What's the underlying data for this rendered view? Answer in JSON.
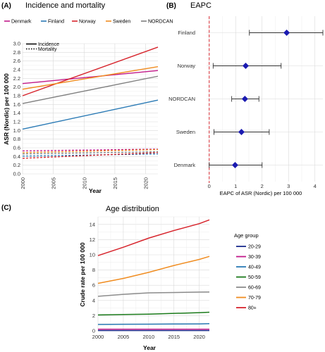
{
  "chart_data": [
    {
      "type": "line",
      "panel": "(A)",
      "title": "Incidence and mortality",
      "xlabel": "Year",
      "ylabel": "ASR (Nordic) per 100 000",
      "xlim": [
        2000,
        2022
      ],
      "ylim": [
        0,
        3.0
      ],
      "xticks": [
        2000,
        2005,
        2010,
        2015,
        2020
      ],
      "yticks": [
        0,
        0.2,
        0.4,
        0.6,
        0.8,
        1.0,
        1.2,
        1.4,
        1.6,
        1.8,
        2.0,
        2.2,
        2.4,
        2.6,
        2.8,
        3.0
      ],
      "legend": [
        "Denmark",
        "Finland",
        "Norway",
        "Sweden",
        "NORDCAN"
      ],
      "linetype_legend": [
        "Incidence",
        "Mortality"
      ],
      "colors": {
        "Denmark": "#c21a8a",
        "Finland": "#2a7ab5",
        "Norway": "#d7242c",
        "Sweden": "#f08c20",
        "NORDCAN": "#7f7f7f"
      },
      "x": [
        2000,
        2022
      ],
      "incidence": [
        {
          "name": "Denmark",
          "values": [
            2.08,
            2.38
          ]
        },
        {
          "name": "Finland",
          "values": [
            1.03,
            1.7
          ]
        },
        {
          "name": "Norway",
          "values": [
            1.8,
            2.92
          ]
        },
        {
          "name": "Sweden",
          "values": [
            1.95,
            2.47
          ]
        },
        {
          "name": "NORDCAN",
          "values": [
            1.62,
            2.25
          ]
        }
      ],
      "mortality": [
        {
          "name": "Denmark",
          "values": [
            0.53,
            0.57
          ]
        },
        {
          "name": "Finland",
          "values": [
            0.41,
            0.46
          ]
        },
        {
          "name": "Norway",
          "values": [
            0.36,
            0.49
          ]
        },
        {
          "name": "Sweden",
          "values": [
            0.49,
            0.56
          ]
        },
        {
          "name": "NORDCAN",
          "values": [
            0.46,
            0.51
          ]
        }
      ]
    },
    {
      "type": "forest",
      "panel": "(B)",
      "title": "EAPC",
      "xlabel": "EAPC of ASR (Nordic) per 100 000",
      "xlim": [
        -0.1,
        4.3
      ],
      "xticks": [
        0,
        1,
        2,
        3,
        4
      ],
      "reference_line": 0,
      "categories": [
        "Finland",
        "Norway",
        "NORDCAN",
        "Sweden",
        "Denmark"
      ],
      "estimate": [
        2.93,
        1.38,
        1.35,
        1.22,
        0.98
      ],
      "lower": [
        1.52,
        0.15,
        0.85,
        0.18,
        0.0
      ],
      "upper": [
        4.3,
        2.72,
        1.88,
        2.27,
        2.0
      ],
      "marker_color": "#1a1ab0"
    },
    {
      "type": "line",
      "panel": "(C)",
      "title": "Age distribution",
      "xlabel": "Year",
      "ylabel": "Crude rate per 100 000",
      "xlim": [
        2000,
        2022
      ],
      "ylim": [
        0,
        15
      ],
      "xticks": [
        2000,
        2005,
        2010,
        2015,
        2020
      ],
      "yticks": [
        0,
        2,
        4,
        6,
        8,
        10,
        12,
        14
      ],
      "legend_title": "Age group",
      "x": [
        2000,
        2005,
        2010,
        2015,
        2020,
        2022
      ],
      "series": [
        {
          "name": "20-29",
          "color": "#1a2a8c",
          "values": [
            0.05,
            0.05,
            0.05,
            0.05,
            0.05,
            0.05
          ]
        },
        {
          "name": "30-39",
          "color": "#c2188a",
          "values": [
            0.22,
            0.22,
            0.22,
            0.22,
            0.22,
            0.22
          ]
        },
        {
          "name": "40-49",
          "color": "#2a7ab5",
          "values": [
            0.85,
            0.87,
            0.88,
            0.9,
            0.92,
            0.95
          ]
        },
        {
          "name": "50-59",
          "color": "#1a7a1a",
          "values": [
            2.1,
            2.15,
            2.2,
            2.3,
            2.4,
            2.45
          ]
        },
        {
          "name": "60-69",
          "color": "#8c8c8c",
          "values": [
            4.55,
            4.8,
            5.0,
            5.05,
            5.1,
            5.12
          ]
        },
        {
          "name": "70-79",
          "color": "#f08c20",
          "values": [
            6.25,
            6.9,
            7.7,
            8.6,
            9.4,
            9.8
          ]
        },
        {
          "name": "80+",
          "color": "#d7242c",
          "values": [
            9.9,
            11.0,
            12.2,
            13.2,
            14.1,
            14.6
          ]
        }
      ]
    }
  ]
}
